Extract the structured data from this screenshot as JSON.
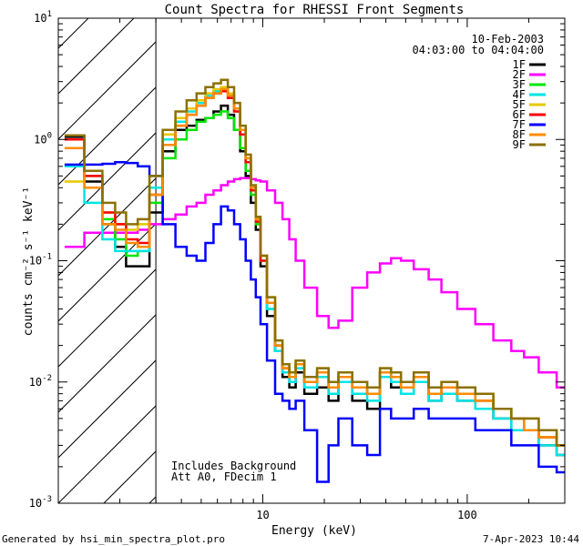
{
  "chart_data": {
    "type": "line",
    "title": "Count Spectra for RHESSI Front Segments",
    "xlabel": "Energy (keV)",
    "ylabel": "counts cm⁻² s⁻¹ keV⁻¹",
    "x_scale": "log",
    "y_scale": "log",
    "xlim": [
      1,
      300
    ],
    "ylim": [
      0.001,
      10
    ],
    "x_ticks": [
      {
        "value": 10,
        "label": "10"
      },
      {
        "value": 100,
        "label": "100"
      }
    ],
    "y_ticks": [
      {
        "value": 0.001,
        "base": "10",
        "exp": "-3"
      },
      {
        "value": 0.01,
        "base": "10",
        "exp": "-2"
      },
      {
        "value": 0.1,
        "base": "10",
        "exp": "-1"
      },
      {
        "value": 1,
        "base": "10",
        "exp": "0"
      },
      {
        "value": 10,
        "base": "10",
        "exp": "1"
      }
    ],
    "legend_position": "top-right",
    "date": "10-Feb-2003",
    "time_range": "04:03:00 to 04:04:00",
    "annotations": [
      "Includes Background",
      "Att A0, FDecim 1"
    ],
    "excluded_region": {
      "from": 1,
      "to": 3
    },
    "energy_bins": [
      1.2,
      1.5,
      1.8,
      2.0,
      2.3,
      2.6,
      3.0,
      3.5,
      4.0,
      4.5,
      5.0,
      5.5,
      6.0,
      6.5,
      7.0,
      7.5,
      8.0,
      8.5,
      9.0,
      9.5,
      10,
      11,
      12,
      13,
      14,
      15,
      17,
      20,
      22,
      25,
      30,
      35,
      40,
      45,
      50,
      60,
      70,
      80,
      100,
      120,
      150,
      180,
      200,
      250,
      300
    ],
    "series": [
      {
        "name": "1F",
        "color": "#000000",
        "values": [
          1.05,
          0.45,
          0.2,
          0.13,
          0.09,
          0.09,
          0.25,
          0.8,
          1.2,
          1.3,
          1.45,
          1.5,
          1.7,
          1.9,
          1.6,
          1.2,
          0.8,
          0.5,
          0.3,
          0.18,
          0.09,
          0.035,
          0.018,
          0.011,
          0.009,
          0.012,
          0.008,
          0.009,
          0.007,
          0.01,
          0.007,
          0.006,
          0.011,
          0.009,
          0.008,
          0.01,
          0.007,
          0.008,
          0.007,
          0.006,
          0.005,
          0.004,
          0.004,
          0.003,
          0.0025
        ]
      },
      {
        "name": "2F",
        "color": "#ff00ff",
        "values": [
          0.13,
          0.17,
          0.17,
          0.17,
          0.17,
          0.18,
          0.2,
          0.22,
          0.24,
          0.28,
          0.3,
          0.35,
          0.38,
          0.42,
          0.45,
          0.47,
          0.48,
          0.48,
          0.47,
          0.46,
          0.45,
          0.38,
          0.3,
          0.22,
          0.15,
          0.1,
          0.06,
          0.035,
          0.028,
          0.032,
          0.06,
          0.08,
          0.095,
          0.105,
          0.1,
          0.085,
          0.07,
          0.055,
          0.04,
          0.03,
          0.022,
          0.018,
          0.016,
          0.012,
          0.009
        ]
      },
      {
        "name": "3F",
        "color": "#00e600",
        "values": [
          1.0,
          0.5,
          0.22,
          0.15,
          0.11,
          0.12,
          0.3,
          0.7,
          1.0,
          1.2,
          1.4,
          1.5,
          1.6,
          1.7,
          1.5,
          1.2,
          0.85,
          0.55,
          0.35,
          0.2,
          0.1,
          0.04,
          0.02,
          0.013,
          0.011,
          0.014,
          0.01,
          0.012,
          0.009,
          0.011,
          0.009,
          0.008,
          0.012,
          0.011,
          0.009,
          0.011,
          0.008,
          0.009,
          0.008,
          0.007,
          0.006,
          0.005,
          0.004,
          0.0035,
          0.003
        ]
      },
      {
        "name": "4F",
        "color": "#00e5e5",
        "values": [
          0.6,
          0.3,
          0.15,
          0.12,
          0.12,
          0.12,
          0.4,
          1.0,
          1.4,
          1.7,
          2.0,
          2.3,
          2.5,
          2.5,
          2.2,
          1.7,
          1.1,
          0.65,
          0.38,
          0.21,
          0.1,
          0.04,
          0.018,
          0.012,
          0.01,
          0.013,
          0.009,
          0.011,
          0.008,
          0.01,
          0.008,
          0.007,
          0.011,
          0.01,
          0.008,
          0.01,
          0.007,
          0.008,
          0.007,
          0.006,
          0.005,
          0.004,
          0.004,
          0.003,
          0.0025
        ]
      },
      {
        "name": "5F",
        "color": "#e6c800",
        "values": [
          0.45,
          0.4,
          0.25,
          0.2,
          0.18,
          0.2,
          0.5,
          1.1,
          1.5,
          1.8,
          2.1,
          2.4,
          2.6,
          2.7,
          2.4,
          1.8,
          1.2,
          0.7,
          0.4,
          0.22,
          0.11,
          0.05,
          0.022,
          0.014,
          0.012,
          0.015,
          0.011,
          0.013,
          0.01,
          0.012,
          0.01,
          0.009,
          0.013,
          0.012,
          0.01,
          0.012,
          0.009,
          0.01,
          0.009,
          0.008,
          0.006,
          0.005,
          0.005,
          0.004,
          0.003
        ]
      },
      {
        "name": "6F",
        "color": "#ff0000",
        "values": [
          1.0,
          0.5,
          0.25,
          0.2,
          0.15,
          0.14,
          0.35,
          0.9,
          1.3,
          1.6,
          1.9,
          2.2,
          2.4,
          2.5,
          2.2,
          1.7,
          1.1,
          0.65,
          0.38,
          0.21,
          0.1,
          0.045,
          0.02,
          0.013,
          0.011,
          0.014,
          0.01,
          0.012,
          0.009,
          0.011,
          0.009,
          0.008,
          0.012,
          0.011,
          0.009,
          0.011,
          0.008,
          0.009,
          0.008,
          0.007,
          0.006,
          0.005,
          0.004,
          0.0035,
          0.003
        ]
      },
      {
        "name": "7F",
        "color": "#0000ff",
        "values": [
          0.62,
          0.62,
          0.63,
          0.65,
          0.64,
          0.6,
          0.5,
          0.2,
          0.13,
          0.11,
          0.1,
          0.14,
          0.2,
          0.28,
          0.26,
          0.2,
          0.15,
          0.1,
          0.07,
          0.05,
          0.03,
          0.015,
          0.008,
          0.007,
          0.006,
          0.007,
          0.004,
          0.0015,
          0.003,
          0.005,
          0.003,
          0.0025,
          0.006,
          0.005,
          0.005,
          0.006,
          0.005,
          0.005,
          0.005,
          0.004,
          0.004,
          0.003,
          0.003,
          0.002,
          0.0018
        ]
      },
      {
        "name": "8F",
        "color": "#ff8c00",
        "values": [
          0.85,
          0.4,
          0.2,
          0.18,
          0.14,
          0.13,
          0.35,
          0.9,
          1.3,
          1.6,
          1.9,
          2.2,
          2.4,
          2.6,
          2.3,
          1.8,
          1.2,
          0.7,
          0.4,
          0.22,
          0.11,
          0.045,
          0.02,
          0.013,
          0.011,
          0.014,
          0.01,
          0.012,
          0.009,
          0.011,
          0.009,
          0.008,
          0.012,
          0.011,
          0.009,
          0.011,
          0.008,
          0.009,
          0.008,
          0.007,
          0.006,
          0.005,
          0.004,
          0.0035,
          0.003
        ]
      },
      {
        "name": "9F",
        "color": "#8b7000",
        "values": [
          1.08,
          0.55,
          0.3,
          0.25,
          0.2,
          0.22,
          0.5,
          1.2,
          1.7,
          2.1,
          2.4,
          2.7,
          2.9,
          3.1,
          2.7,
          2.0,
          1.3,
          0.75,
          0.42,
          0.23,
          0.11,
          0.05,
          0.022,
          0.014,
          0.012,
          0.015,
          0.011,
          0.013,
          0.01,
          0.012,
          0.01,
          0.009,
          0.013,
          0.012,
          0.01,
          0.012,
          0.009,
          0.01,
          0.009,
          0.008,
          0.006,
          0.005,
          0.005,
          0.004,
          0.003
        ]
      }
    ]
  },
  "footer": {
    "generated_by": "Generated by hsi_min_spectra_plot.pro",
    "timestamp": "7-Apr-2023 10:44"
  },
  "colors": {
    "background": "#ffffff",
    "axes": "#000000"
  }
}
